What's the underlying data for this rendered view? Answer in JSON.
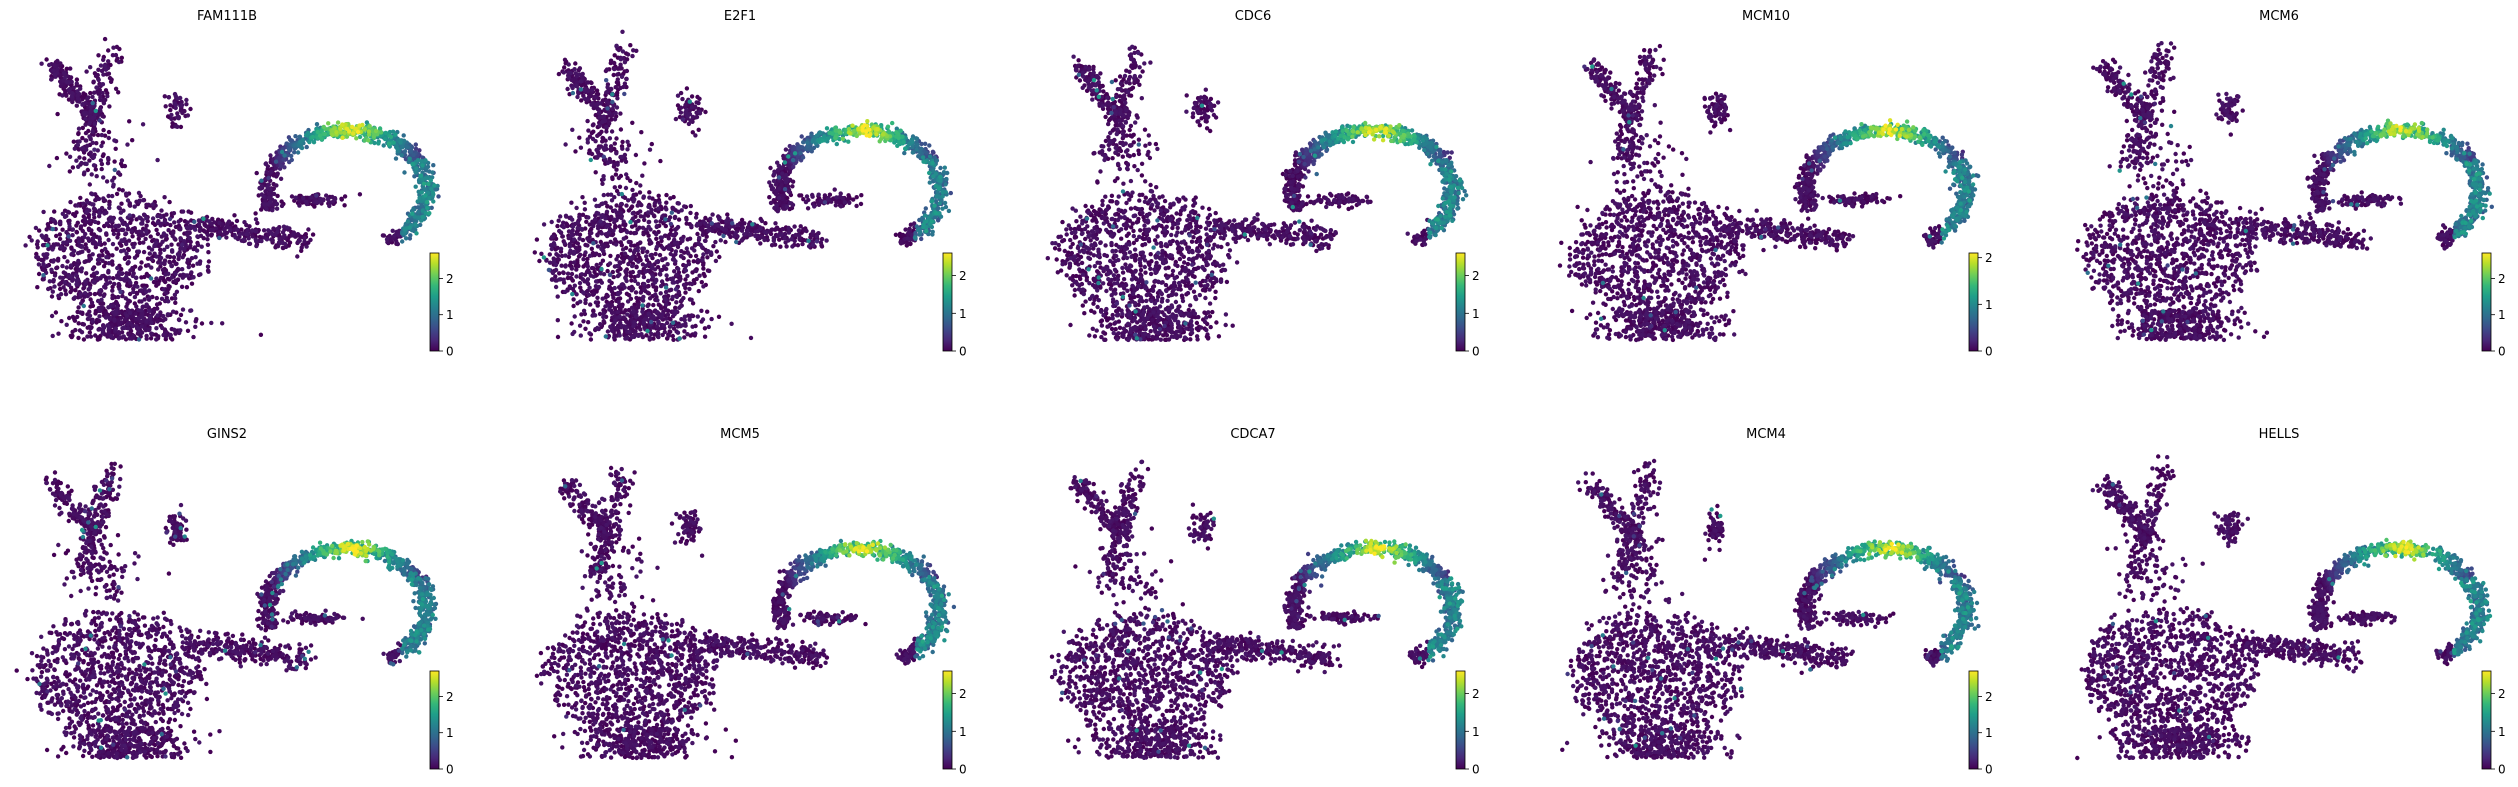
{
  "figure": {
    "colormap": "viridis",
    "colormap_stops": [
      "#440154",
      "#482878",
      "#3e4989",
      "#31688e",
      "#26828e",
      "#1f9e89",
      "#35b779",
      "#6ece58",
      "#b5de2b",
      "#fde725"
    ],
    "background": "#ffffff"
  },
  "chart_data": [
    {
      "type": "scatter",
      "title": "FAM111B",
      "colorbar": {
        "ticks": [
          "0",
          "1",
          "2"
        ],
        "vmin": 0,
        "vmax": 2.7
      }
    },
    {
      "type": "scatter",
      "title": "E2F1",
      "colorbar": {
        "ticks": [
          "0",
          "1",
          "2"
        ],
        "vmin": 0,
        "vmax": 2.6
      }
    },
    {
      "type": "scatter",
      "title": "CDC6",
      "colorbar": {
        "ticks": [
          "0",
          "1",
          "2"
        ],
        "vmin": 0,
        "vmax": 2.6
      }
    },
    {
      "type": "scatter",
      "title": "MCM10",
      "colorbar": {
        "ticks": [
          "0",
          "1",
          "2"
        ],
        "vmin": 0,
        "vmax": 2.1
      }
    },
    {
      "type": "scatter",
      "title": "MCM6",
      "colorbar": {
        "ticks": [
          "0",
          "1",
          "2"
        ],
        "vmin": 0,
        "vmax": 2.7
      }
    },
    {
      "type": "scatter",
      "title": "GINS2",
      "colorbar": {
        "ticks": [
          "0",
          "1",
          "2"
        ],
        "vmin": 0,
        "vmax": 2.7
      }
    },
    {
      "type": "scatter",
      "title": "MCM5",
      "colorbar": {
        "ticks": [
          "0",
          "1",
          "2"
        ],
        "vmin": 0,
        "vmax": 2.6
      }
    },
    {
      "type": "scatter",
      "title": "CDCA7",
      "colorbar": {
        "ticks": [
          "0",
          "1",
          "2"
        ],
        "vmin": 0,
        "vmax": 2.6
      }
    },
    {
      "type": "scatter",
      "title": "MCM4",
      "colorbar": {
        "ticks": [
          "0",
          "1",
          "2"
        ],
        "vmin": 0,
        "vmax": 2.7
      }
    },
    {
      "type": "scatter",
      "title": "HELLS",
      "colorbar": {
        "ticks": [
          "0",
          "1",
          "2"
        ],
        "vmin": 0,
        "vmax": 2.6
      }
    }
  ]
}
